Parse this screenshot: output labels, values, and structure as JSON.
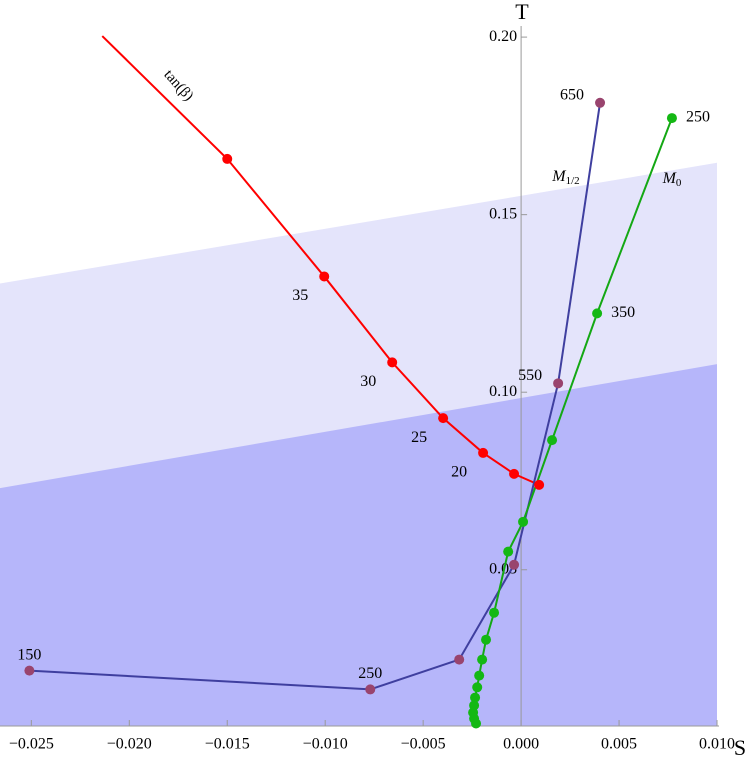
{
  "chart_data": {
    "type": "line",
    "x_label": "S",
    "y_label": "T",
    "xlim": [
      -0.0266,
      0.01
    ],
    "ylim": [
      0.006,
      0.202
    ],
    "xticks": [
      {
        "value": -0.025,
        "label": "−0.025"
      },
      {
        "value": -0.02,
        "label": "−0.020"
      },
      {
        "value": -0.015,
        "label": "−0.015"
      },
      {
        "value": -0.01,
        "label": "−0.010"
      },
      {
        "value": -0.005,
        "label": "−0.005"
      },
      {
        "value": 0,
        "label": "0.000"
      },
      {
        "value": 0.005,
        "label": "0.005"
      },
      {
        "value": 0.01,
        "label": "0.010"
      }
    ],
    "yticks": [
      {
        "value": 0.05,
        "label": "0.05"
      },
      {
        "value": 0.1,
        "label": "0.10"
      },
      {
        "value": 0.15,
        "label": "0.15"
      },
      {
        "value": 0.2,
        "label": "0.20"
      }
    ],
    "bands": [
      {
        "color": "#e4e4fb",
        "x": [
          -0.0266,
          0.01
        ],
        "y": [
          0.1306,
          0.1646
        ]
      },
      {
        "color": "#b6b6fa",
        "x": [
          -0.0266,
          0.01
        ],
        "y": [
          0.073,
          0.1079
        ]
      }
    ],
    "series": [
      {
        "name": "tan(β)",
        "color": "#ff0000",
        "marker_color": "#ff0000",
        "x": [
          -0.02138,
          -0.015,
          -0.01005,
          -0.00658,
          -0.00398,
          -0.00194,
          -0.00036,
          0.00092
        ],
        "values": [
          0.2003,
          0.1657,
          0.1326,
          0.1084,
          0.0927,
          0.0829,
          0.077,
          0.0739
        ],
        "markers": [
          false,
          true,
          true,
          true,
          true,
          true,
          true,
          true
        ],
        "value_labels": [
          null,
          null,
          "35",
          "30",
          "25",
          "20",
          null,
          null
        ]
      },
      {
        "name": "M1/2",
        "color": "#3f3f9f",
        "marker_color": "#99446e",
        "x": [
          0.00403,
          0.00189,
          -0.00036,
          -0.00316,
          -0.0077,
          -0.0251
        ],
        "values": [
          0.1815,
          0.1025,
          0.0514,
          0.0247,
          0.0163,
          0.0216
        ],
        "markers": [
          true,
          true,
          true,
          true,
          true,
          true
        ],
        "value_labels": [
          "650",
          "550",
          null,
          null,
          "250",
          "150"
        ]
      },
      {
        "name": "M0",
        "color": "#14a814",
        "marker_color": "#14b814",
        "x": [
          0.0077,
          0.00388,
          0.00158,
          0.0001,
          -0.00066,
          -0.00138,
          -0.00179,
          -0.00199,
          -0.00214,
          -0.00224,
          -0.00235,
          -0.0024,
          -0.00245,
          -0.0024,
          -0.0023
        ],
        "values": [
          0.1772,
          0.1222,
          0.0865,
          0.0635,
          0.0551,
          0.0379,
          0.0303,
          0.0247,
          0.0202,
          0.0169,
          0.014,
          0.0118,
          0.0098,
          0.0081,
          0.0067
        ],
        "markers": [
          true,
          true,
          true,
          true,
          true,
          true,
          true,
          true,
          true,
          true,
          true,
          true,
          true,
          true,
          true
        ],
        "value_labels": [
          "250",
          "350",
          null,
          null,
          null,
          null,
          null,
          null,
          null,
          null,
          null,
          null,
          null,
          null,
          null
        ]
      }
    ]
  }
}
